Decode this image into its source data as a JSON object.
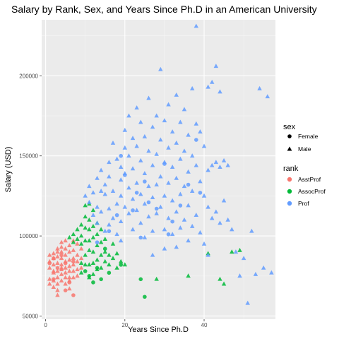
{
  "chart_data": {
    "type": "scatter",
    "title": "Salary by Rank, Sex, and Years Since Ph.D in an American University",
    "xlabel": "Years Since Ph.D",
    "ylabel": "Salary (USD)",
    "xlim": [
      -1,
      58
    ],
    "ylim": [
      48000,
      235000
    ],
    "xticks": [
      0,
      20,
      40
    ],
    "yticks": [
      50000,
      100000,
      150000,
      200000
    ],
    "xtick_labels": [
      "0",
      "20",
      "40"
    ],
    "ytick_labels": [
      "50000",
      "100000",
      "150000",
      "200000"
    ],
    "grid": true,
    "background": "#ebebeb",
    "legend_placement": "right",
    "legends": {
      "sex": {
        "title": "sex",
        "items": [
          {
            "label": "Female",
            "shape": "circle"
          },
          {
            "label": "Male",
            "shape": "triangle"
          }
        ]
      },
      "rank": {
        "title": "rank",
        "items": [
          {
            "label": "AsstProf",
            "color": "#f8766d"
          },
          {
            "label": "AssocProf",
            "color": "#00ba38"
          },
          {
            "label": "Prof",
            "color": "#619cff"
          }
        ]
      }
    },
    "series": [
      {
        "rank": "AsstProf",
        "color": "#f8766d",
        "male": [
          [
            1,
            88000
          ],
          [
            1,
            84000
          ],
          [
            1,
            80000
          ],
          [
            1,
            73000
          ],
          [
            1,
            70000
          ],
          [
            2,
            89000
          ],
          [
            2,
            86000
          ],
          [
            2,
            82000
          ],
          [
            2,
            77000
          ],
          [
            2,
            72000
          ],
          [
            2,
            68000
          ],
          [
            3,
            92000
          ],
          [
            3,
            90000
          ],
          [
            3,
            87000
          ],
          [
            3,
            83000
          ],
          [
            3,
            78000
          ],
          [
            3,
            74000
          ],
          [
            3,
            70000
          ],
          [
            3,
            66000
          ],
          [
            4,
            96000
          ],
          [
            4,
            93000
          ],
          [
            4,
            90000
          ],
          [
            4,
            86000
          ],
          [
            4,
            82000
          ],
          [
            4,
            79000
          ],
          [
            4,
            76000
          ],
          [
            4,
            72000
          ],
          [
            5,
            97000
          ],
          [
            5,
            92000
          ],
          [
            5,
            88000
          ],
          [
            5,
            84000
          ],
          [
            5,
            80000
          ],
          [
            5,
            77000
          ],
          [
            5,
            74000
          ],
          [
            5,
            70000
          ],
          [
            6,
            94000
          ],
          [
            6,
            90000
          ],
          [
            6,
            85000
          ],
          [
            6,
            81000
          ],
          [
            6,
            78000
          ],
          [
            6,
            74000
          ],
          [
            6,
            67000
          ],
          [
            7,
            97000
          ],
          [
            7,
            91000
          ],
          [
            7,
            86000
          ],
          [
            7,
            82000
          ],
          [
            7,
            78000
          ],
          [
            7,
            74000
          ],
          [
            8,
            95000
          ],
          [
            8,
            88000
          ],
          [
            8,
            84000
          ],
          [
            8,
            79000
          ],
          [
            8,
            75000
          ],
          [
            9,
            92000
          ],
          [
            9,
            86000
          ],
          [
            9,
            80000
          ],
          [
            3,
            63000
          ],
          [
            4,
            80000
          ],
          [
            6,
            72000
          ],
          [
            2,
            78000
          ]
        ],
        "female": [
          [
            1,
            83000
          ],
          [
            2,
            86000
          ],
          [
            2,
            73000
          ],
          [
            4,
            88000
          ],
          [
            5,
            83000
          ],
          [
            6,
            71000
          ],
          [
            7,
            63000
          ],
          [
            7,
            84000
          ],
          [
            3,
            80000
          ],
          [
            5,
            66000
          ]
        ]
      },
      {
        "rank": "AssocProf",
        "color": "#00ba38",
        "male": [
          [
            6,
            99000
          ],
          [
            7,
            101000
          ],
          [
            7,
            96000
          ],
          [
            8,
            104000
          ],
          [
            8,
            98000
          ],
          [
            9,
            107000
          ],
          [
            9,
            100000
          ],
          [
            9,
            83000
          ],
          [
            9,
            77000
          ],
          [
            10,
            119000
          ],
          [
            10,
            112000
          ],
          [
            10,
            105000
          ],
          [
            10,
            97000
          ],
          [
            10,
            82000
          ],
          [
            11,
            120000
          ],
          [
            11,
            110000
          ],
          [
            11,
            104000
          ],
          [
            11,
            97000
          ],
          [
            11,
            82000
          ],
          [
            11,
            74000
          ],
          [
            12,
            116000
          ],
          [
            12,
            106000
          ],
          [
            12,
            99000
          ],
          [
            12,
            90000
          ],
          [
            12,
            83000
          ],
          [
            12,
            76000
          ],
          [
            13,
            108000
          ],
          [
            13,
            101000
          ],
          [
            13,
            94000
          ],
          [
            13,
            85000
          ],
          [
            14,
            104000
          ],
          [
            14,
            96000
          ],
          [
            14,
            88000
          ],
          [
            14,
            80000
          ],
          [
            15,
            98000
          ],
          [
            15,
            90000
          ],
          [
            15,
            84000
          ],
          [
            16,
            88000
          ],
          [
            16,
            82000
          ],
          [
            17,
            95000
          ],
          [
            17,
            86000
          ],
          [
            18,
            89000
          ],
          [
            18,
            80000
          ],
          [
            19,
            84000
          ],
          [
            20,
            82000
          ],
          [
            28,
            73000
          ],
          [
            36,
            75000
          ],
          [
            41,
            89000
          ],
          [
            44,
            73000
          ],
          [
            45,
            70000
          ],
          [
            47,
            90000
          ],
          [
            49,
            91000
          ],
          [
            9,
            95000
          ],
          [
            10,
            88000
          ],
          [
            11,
            91000
          ],
          [
            13,
            79000
          ]
        ],
        "female": [
          [
            10,
            78000
          ],
          [
            11,
            75000
          ],
          [
            12,
            71000
          ],
          [
            13,
            80000
          ],
          [
            14,
            73000
          ],
          [
            16,
            77000
          ],
          [
            19,
            82000
          ],
          [
            24,
            73000
          ],
          [
            25,
            62000
          ],
          [
            15,
            92000
          ]
        ]
      },
      {
        "rank": "Prof",
        "color": "#619cff",
        "male": [
          [
            10,
            125000
          ],
          [
            11,
            121000
          ],
          [
            11,
            131000
          ],
          [
            12,
            127000
          ],
          [
            12,
            113000
          ],
          [
            13,
            118000
          ],
          [
            13,
            136000
          ],
          [
            13,
            108000
          ],
          [
            14,
            141000
          ],
          [
            14,
            128000
          ],
          [
            14,
            115000
          ],
          [
            15,
            132000
          ],
          [
            15,
            126000
          ],
          [
            15,
            103000
          ],
          [
            16,
            117000
          ],
          [
            16,
            146000
          ],
          [
            16,
            137000
          ],
          [
            16,
            107000
          ],
          [
            17,
            158000
          ],
          [
            17,
            128000
          ],
          [
            17,
            111000
          ],
          [
            18,
            148000
          ],
          [
            18,
            120000
          ],
          [
            18,
            101000
          ],
          [
            19,
            135000
          ],
          [
            19,
            143000
          ],
          [
            19,
            125000
          ],
          [
            19,
            109000
          ],
          [
            20,
            166000
          ],
          [
            20,
            155000
          ],
          [
            20,
            139000
          ],
          [
            20,
            118000
          ],
          [
            21,
            175000
          ],
          [
            21,
            150000
          ],
          [
            21,
            130000
          ],
          [
            21,
            114000
          ],
          [
            22,
            161000
          ],
          [
            22,
            142000
          ],
          [
            22,
            123000
          ],
          [
            22,
            104000
          ],
          [
            23,
            180000
          ],
          [
            23,
            156000
          ],
          [
            23,
            133000
          ],
          [
            23,
            116000
          ],
          [
            24,
            171000
          ],
          [
            24,
            147000
          ],
          [
            24,
            126000
          ],
          [
            24,
            108000
          ],
          [
            25,
            162000
          ],
          [
            25,
            139000
          ],
          [
            25,
            120000
          ],
          [
            25,
            99000
          ],
          [
            26,
            186000
          ],
          [
            26,
            153000
          ],
          [
            26,
            131000
          ],
          [
            26,
            112000
          ],
          [
            27,
            168000
          ],
          [
            27,
            144000
          ],
          [
            27,
            124000
          ],
          [
            27,
            103000
          ],
          [
            28,
            175000
          ],
          [
            28,
            151000
          ],
          [
            28,
            132000
          ],
          [
            28,
            114000
          ],
          [
            29,
            204000
          ],
          [
            29,
            160000
          ],
          [
            29,
            137000
          ],
          [
            29,
            118000
          ],
          [
            30,
            172000
          ],
          [
            30,
            146000
          ],
          [
            30,
            125000
          ],
          [
            30,
            104000
          ],
          [
            31,
            182000
          ],
          [
            31,
            155000
          ],
          [
            31,
            133000
          ],
          [
            31,
            111000
          ],
          [
            32,
            165000
          ],
          [
            32,
            143000
          ],
          [
            32,
            122000
          ],
          [
            32,
            101000
          ],
          [
            33,
            188000
          ],
          [
            33,
            158000
          ],
          [
            33,
            136000
          ],
          [
            33,
            115000
          ],
          [
            34,
            171000
          ],
          [
            34,
            148000
          ],
          [
            34,
            126000
          ],
          [
            34,
            105000
          ],
          [
            35,
            179000
          ],
          [
            35,
            153000
          ],
          [
            35,
            131000
          ],
          [
            35,
            110000
          ],
          [
            36,
            163000
          ],
          [
            36,
            140000
          ],
          [
            36,
            119000
          ],
          [
            36,
            97000
          ],
          [
            37,
            192000
          ],
          [
            37,
            150000
          ],
          [
            37,
            128000
          ],
          [
            37,
            106000
          ],
          [
            38,
            231000
          ],
          [
            38,
            170000
          ],
          [
            38,
            144000
          ],
          [
            38,
            113000
          ],
          [
            39,
            165000
          ],
          [
            39,
            134000
          ],
          [
            39,
            102000
          ],
          [
            40,
            156000
          ],
          [
            40,
            125000
          ],
          [
            40,
            95000
          ],
          [
            41,
            141000
          ],
          [
            41,
            118000
          ],
          [
            41,
            88000
          ],
          [
            42,
            196000
          ],
          [
            42,
            144000
          ],
          [
            42,
            111000
          ],
          [
            43,
            206000
          ],
          [
            43,
            146000
          ],
          [
            43,
            115000
          ],
          [
            44,
            190000
          ],
          [
            44,
            143000
          ],
          [
            44,
            108000
          ],
          [
            45,
            147000
          ],
          [
            45,
            122000
          ],
          [
            46,
            144000
          ],
          [
            46,
            110000
          ],
          [
            47,
            104000
          ],
          [
            48,
            90000
          ],
          [
            49,
            75000
          ],
          [
            50,
            86000
          ],
          [
            51,
            58000
          ],
          [
            52,
            103000
          ],
          [
            53,
            76000
          ],
          [
            54,
            192000
          ],
          [
            55,
            80000
          ],
          [
            56,
            187000
          ],
          [
            57,
            77000
          ],
          [
            41,
            193000
          ],
          [
            27,
            88000
          ],
          [
            33,
            93000
          ],
          [
            19,
            97000
          ],
          [
            30,
            92000
          ]
        ],
        "female": [
          [
            16,
            103000
          ],
          [
            18,
            113000
          ],
          [
            19,
            150000
          ],
          [
            20,
            138000
          ],
          [
            22,
            116000
          ],
          [
            23,
            127000
          ],
          [
            24,
            99000
          ],
          [
            25,
            134000
          ],
          [
            26,
            121000
          ],
          [
            28,
            117000
          ],
          [
            30,
            145000
          ],
          [
            32,
            109000
          ],
          [
            34,
            119000
          ],
          [
            36,
            132000
          ],
          [
            39,
            127000
          ],
          [
            13,
            96000
          ],
          [
            31,
            101000
          ],
          [
            38,
            160000
          ]
        ]
      }
    ]
  }
}
